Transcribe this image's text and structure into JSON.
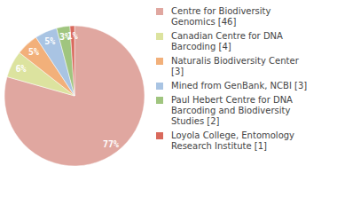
{
  "chart_data": {
    "type": "pie",
    "categories": [
      "Centre for Biodiversity Genomics [46]",
      "Canadian Centre for DNA Barcoding [4]",
      "Naturalis Biodiversity Center [3]",
      "Mined from GenBank, NCBI [3]",
      "Paul Hebert Centre for DNA Barcoding and Biodiversity Studies [2]",
      "Loyola College, Entomology Research Institute [1]"
    ],
    "values": [
      77,
      6,
      5,
      5,
      3,
      1
    ],
    "value_labels": [
      "77%",
      "6%",
      "5%",
      "5%",
      "3%",
      "1%"
    ],
    "colors": [
      "#e0a7a0",
      "#dce39f",
      "#f2b07a",
      "#a9c4e3",
      "#a0c57f",
      "#d9695c"
    ],
    "data_labels": true,
    "legend": "right"
  }
}
